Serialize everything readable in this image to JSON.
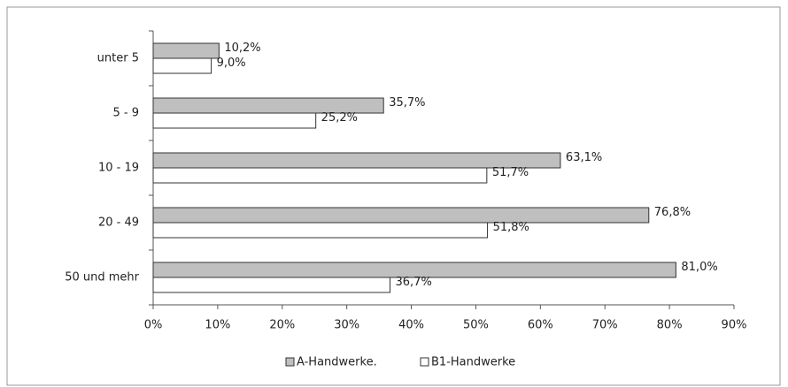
{
  "chart_data": {
    "type": "bar",
    "orientation": "horizontal",
    "categories": [
      "unter 5",
      "5 - 9",
      "10 - 19",
      "20 - 49",
      "50 und mehr"
    ],
    "series": [
      {
        "name": "A-Handwerke.",
        "color": "#bfbfbf",
        "values": [
          10.2,
          35.7,
          63.1,
          76.8,
          81.0
        ],
        "value_labels": [
          "10,2%",
          "35,7%",
          "63,1%",
          "76,8%",
          "81,0%"
        ]
      },
      {
        "name": "B1-Handwerke",
        "color": "#ffffff",
        "values": [
          9.0,
          25.2,
          51.7,
          51.8,
          36.7
        ],
        "value_labels": [
          "9,0%",
          "25,2%",
          "51,7%",
          "51,8%",
          "36,7%"
        ]
      }
    ],
    "xlim": [
      0,
      90
    ],
    "xticks": [
      {
        "value": 0,
        "label": "0%"
      },
      {
        "value": 10,
        "label": "10%"
      },
      {
        "value": 20,
        "label": "20%"
      },
      {
        "value": 30,
        "label": "30%"
      },
      {
        "value": 40,
        "label": "40%"
      },
      {
        "value": 50,
        "label": "50%"
      },
      {
        "value": 60,
        "label": "60%"
      },
      {
        "value": 70,
        "label": "70%"
      },
      {
        "value": 80,
        "label": "80%"
      },
      {
        "value": 90,
        "label": "90%"
      }
    ],
    "legend": "bottom"
  }
}
